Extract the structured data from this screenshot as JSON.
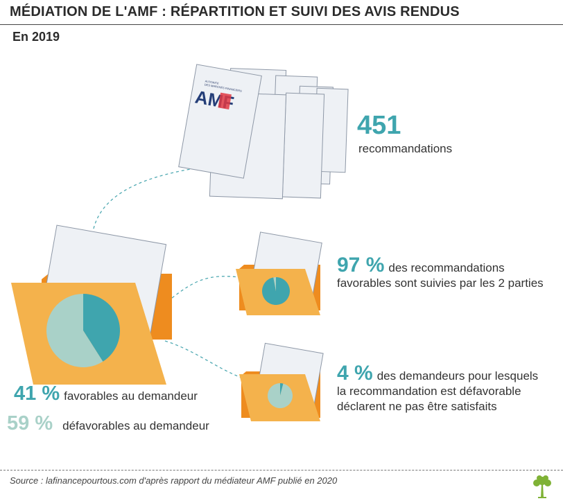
{
  "header": {
    "title": "MÉDIATION DE L'AMF : RÉPARTITION ET SUIVI DES AVIS RENDUS",
    "year": "En 2019"
  },
  "logo": {
    "small_text_1": "AUTORITÉ",
    "small_text_2": "DES MARCHÉS FINANCIERS",
    "wordmark": "AMF"
  },
  "recommendations": {
    "count": "451",
    "label": "recommandations"
  },
  "followed": {
    "pct": "97 %",
    "line1": "des recommandations",
    "line2": "favorables sont suivies par les 2 parties"
  },
  "unsatisfied": {
    "pct": "4 %",
    "line1": "des demandeurs pour lesquels",
    "line2": "la recommandation est défavorable",
    "line3": "déclarent ne pas être satisfaits"
  },
  "split": {
    "fav_pct": "41 %",
    "fav_label": "favorables au demandeur",
    "unfav_pct": "59 %",
    "unfav_label": "défavorables au demandeur"
  },
  "footer": {
    "source": "Source : lafinancepourtous.com d'après rapport du médiateur AMF publié en 2020"
  },
  "colors": {
    "teal": "#3fa5ae",
    "light_teal": "#a9d1c8",
    "folder": "#f4b24c",
    "folder_back": "#ee8c1f",
    "paper": "#eef1f5"
  },
  "chart_data": [
    {
      "type": "pie",
      "labels": [
        "favorables au demandeur",
        "défavorables au demandeur"
      ],
      "values": [
        41,
        59
      ],
      "colors": [
        "#3fa5ae",
        "#a9d1c8"
      ]
    },
    {
      "type": "pie",
      "labels": [
        "des recommandations favorables sont suivies par les 2 parties",
        ""
      ],
      "values": [
        97,
        3
      ],
      "colors": [
        "#3fa5ae",
        "#a9d1c8"
      ]
    },
    {
      "type": "pie",
      "labels": [
        "des demandeurs pour lesquels la recommandation est défavorable déclarent ne pas être satisfaits",
        ""
      ],
      "values": [
        4,
        96
      ],
      "colors": [
        "#3fa5ae",
        "#a9d1c8"
      ]
    }
  ]
}
